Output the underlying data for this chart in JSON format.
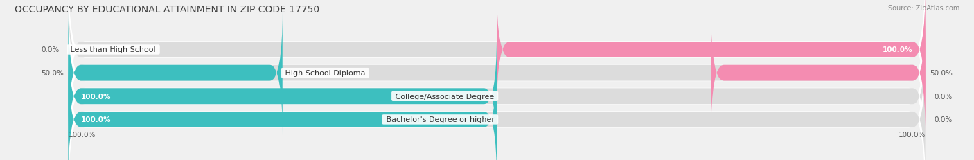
{
  "title": "OCCUPANCY BY EDUCATIONAL ATTAINMENT IN ZIP CODE 17750",
  "source": "Source: ZipAtlas.com",
  "categories": [
    "Less than High School",
    "High School Diploma",
    "College/Associate Degree",
    "Bachelor's Degree or higher"
  ],
  "owner_values": [
    0.0,
    50.0,
    100.0,
    100.0
  ],
  "renter_values": [
    100.0,
    50.0,
    0.0,
    0.0
  ],
  "owner_color": "#3dbfbf",
  "renter_color": "#f48cb1",
  "background_color": "#f0f0f0",
  "bar_bg_color": "#dcdcdc",
  "bar_bg_color_alt": "#e8e8e8",
  "title_fontsize": 10,
  "label_fontsize": 8,
  "tick_fontsize": 7.5,
  "figsize": [
    14.06,
    2.32
  ],
  "dpi": 100,
  "xlim": [
    -100,
    100
  ],
  "bar_height": 0.72,
  "bar_gap": 0.28
}
